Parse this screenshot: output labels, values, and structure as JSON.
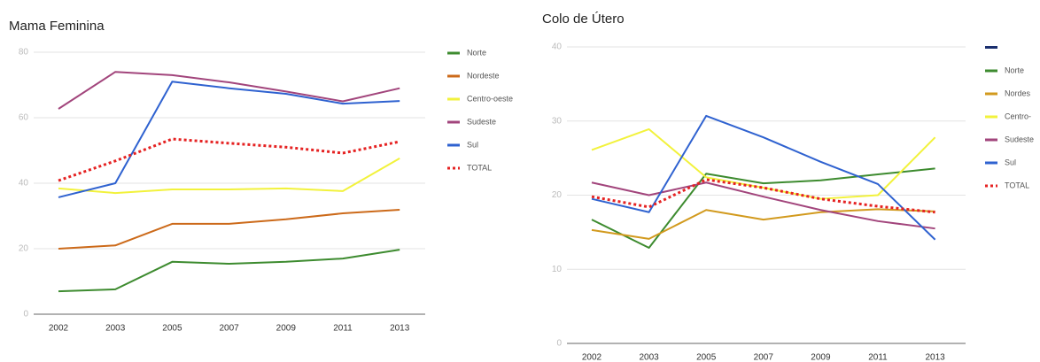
{
  "chart_data": [
    {
      "type": "line",
      "title": "Mama Feminina",
      "categories": [
        "2002",
        "2003",
        "2005",
        "2007",
        "2009",
        "2011",
        "2013"
      ],
      "ylim": [
        0,
        80
      ],
      "yticks": [
        0,
        20,
        40,
        60,
        80
      ],
      "grid": true,
      "series": [
        {
          "name": "Norte",
          "color": "#3d8b2f",
          "values": [
            7,
            7.6,
            16,
            15.4,
            16,
            17,
            19.7
          ]
        },
        {
          "name": "Nordeste",
          "color": "#cc6a1a",
          "values": [
            20,
            21,
            27.6,
            27.6,
            29,
            30.8,
            31.9
          ]
        },
        {
          "name": "Centro-oeste",
          "color": "#f2f23c",
          "values": [
            38.4,
            37,
            38.1,
            38.1,
            38.4,
            37.6,
            47.6
          ]
        },
        {
          "name": "Sudeste",
          "color": "#a2457c",
          "values": [
            62.7,
            74,
            73,
            70.8,
            68,
            65,
            69
          ]
        },
        {
          "name": "Sul",
          "color": "#2f62d0",
          "values": [
            35.7,
            40,
            71,
            69,
            67.3,
            64.3,
            65.1
          ]
        },
        {
          "name": "TOTAL",
          "color": "#e52222",
          "style": "dotted",
          "values": [
            40.8,
            46.8,
            53.5,
            52.2,
            51,
            49.2,
            52.7
          ]
        }
      ]
    },
    {
      "type": "line",
      "title": "Colo de Útero",
      "categories": [
        "2002",
        "2003",
        "2005",
        "2007",
        "2009",
        "2011",
        "2013"
      ],
      "ylim": [
        0,
        40
      ],
      "yticks": [
        0,
        10,
        20,
        30,
        40
      ],
      "grid": true,
      "series": [
        {
          "name": "Norte",
          "color": "#3d8b2f",
          "values": [
            16.7,
            12.9,
            22.9,
            21.6,
            22,
            22.8,
            23.6
          ]
        },
        {
          "name": "Nordes",
          "color": "#d29a1e",
          "values": [
            15.3,
            14.1,
            18,
            16.7,
            17.7,
            18.1,
            17.8
          ]
        },
        {
          "name": "Centro-",
          "color": "#f2f23c",
          "values": [
            26.1,
            28.9,
            22.4,
            21,
            19.5,
            20,
            27.8
          ]
        },
        {
          "name": "Sudeste",
          "color": "#a2457c",
          "values": [
            21.7,
            20,
            21.7,
            19.8,
            18,
            16.5,
            15.5
          ]
        },
        {
          "name": "Sul",
          "color": "#2f62d0",
          "values": [
            19.5,
            17.7,
            30.7,
            27.8,
            24.5,
            21.5,
            14
          ]
        },
        {
          "name": "TOTAL",
          "color": "#e52222",
          "style": "dotted",
          "values": [
            19.8,
            18.4,
            22.1,
            21,
            19.5,
            18.5,
            17.7
          ]
        }
      ]
    }
  ]
}
